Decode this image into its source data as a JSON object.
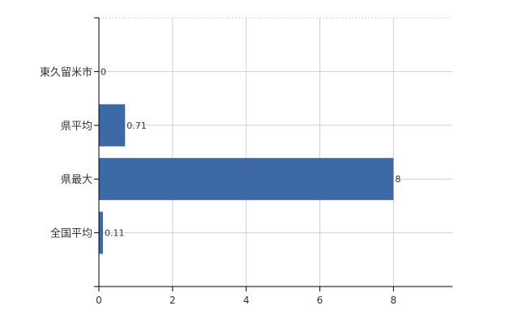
{
  "chart_data": {
    "type": "bar",
    "orientation": "horizontal",
    "categories": [
      "東久留米市",
      "県平均",
      "県最大",
      "全国平均"
    ],
    "values": [
      0,
      0.71,
      8,
      0.11
    ],
    "data_labels": [
      "0",
      "0.71",
      "8",
      "0.11"
    ],
    "xlim": [
      0,
      9.6
    ],
    "x_ticks": [
      0,
      2,
      4,
      6,
      8
    ],
    "x_tick_labels": [
      "0",
      "2",
      "4",
      "6",
      "8"
    ],
    "title": "",
    "xlabel": "",
    "ylabel": "",
    "grid": true,
    "legend": "none",
    "bar_color": "#3d6aa6",
    "grid_color": "#d0d0d0",
    "axis_color": "#000000"
  }
}
